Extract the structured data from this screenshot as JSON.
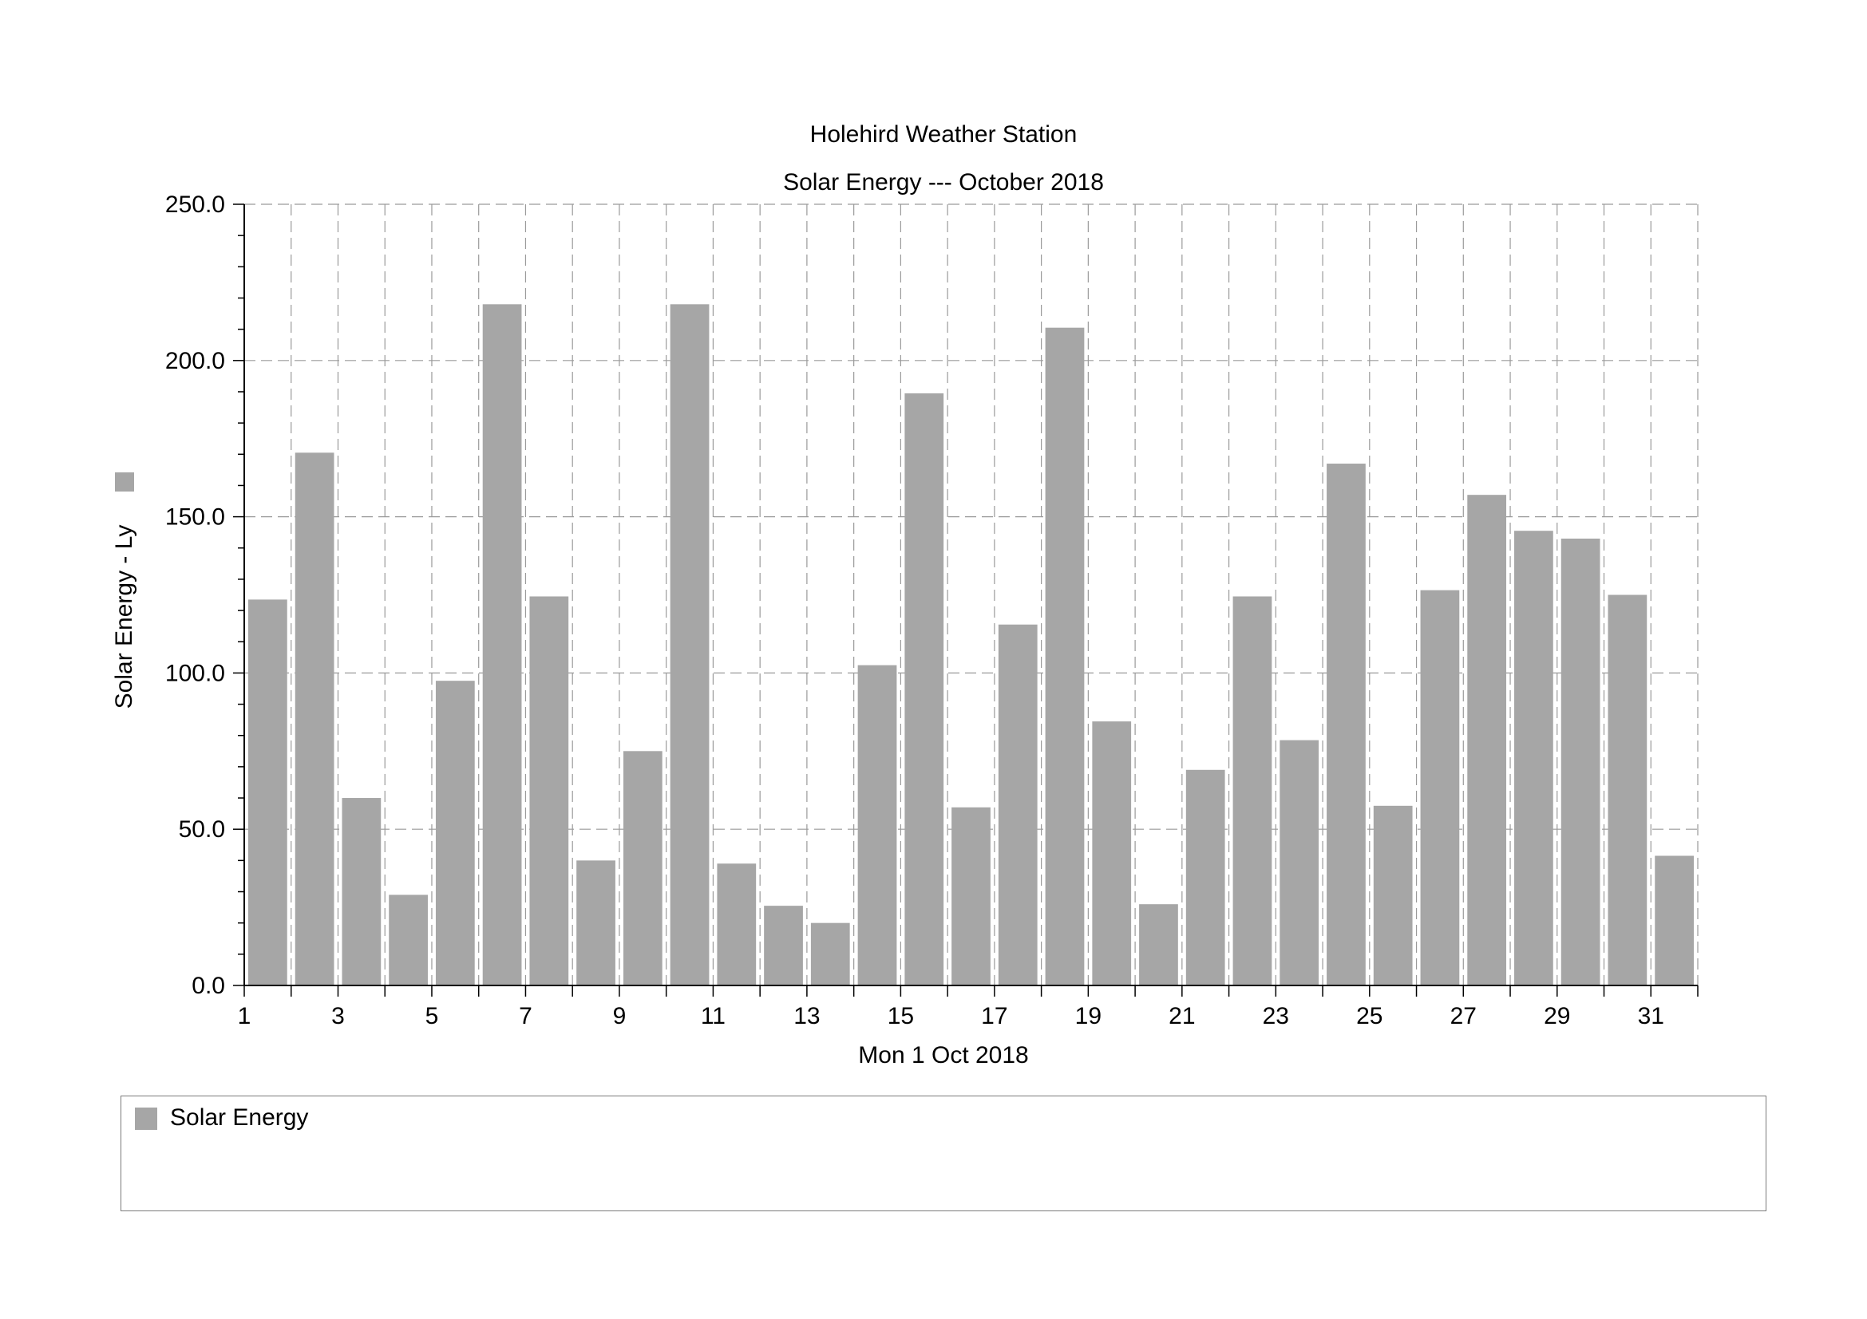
{
  "chart_data": {
    "type": "bar",
    "title": "Holehird Weather Station",
    "subtitle": "Solar Energy --- October 2018",
    "xlabel": "Mon 1 Oct 2018",
    "ylabel": "Solar Energy - Ly",
    "ylim": [
      0,
      250
    ],
    "yticks": [
      "0.0",
      "50.0",
      "100.0",
      "150.0",
      "200.0",
      "250.0"
    ],
    "categories": [
      1,
      2,
      3,
      4,
      5,
      6,
      7,
      8,
      9,
      10,
      11,
      12,
      13,
      14,
      15,
      16,
      17,
      18,
      19,
      20,
      21,
      22,
      23,
      24,
      25,
      26,
      27,
      28,
      29,
      30,
      31
    ],
    "xtick_labels": [
      "1",
      "3",
      "5",
      "7",
      "9",
      "11",
      "13",
      "15",
      "17",
      "19",
      "21",
      "23",
      "25",
      "27",
      "29",
      "31"
    ],
    "series": [
      {
        "name": "Solar Energy",
        "color": "#a6a6a6",
        "values": [
          123.5,
          170.5,
          60.0,
          29.0,
          97.5,
          218.0,
          124.5,
          40.0,
          75.0,
          218.0,
          39.0,
          25.5,
          20.0,
          102.5,
          189.5,
          57.0,
          115.5,
          210.5,
          84.5,
          26.0,
          69.0,
          124.5,
          78.5,
          167.0,
          57.5,
          126.5,
          157.0,
          145.5,
          143.0,
          125.0,
          41.5
        ]
      }
    ],
    "grid": true,
    "legend": "bottom"
  },
  "legend": {
    "label": "Solar Energy",
    "color": "#a6a6a6"
  }
}
